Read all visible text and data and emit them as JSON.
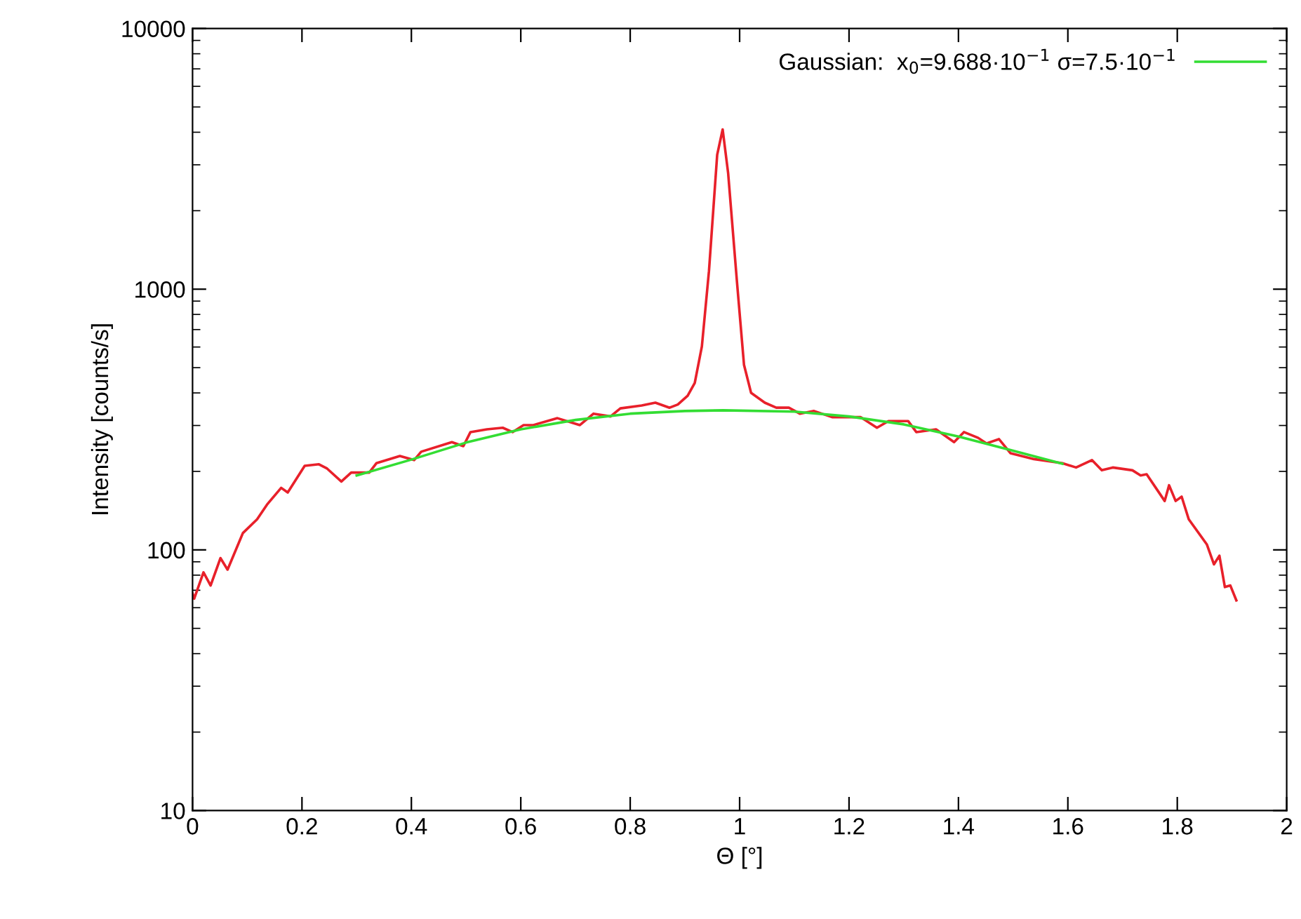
{
  "chart_data": {
    "type": "line",
    "xlabel": "Θ [°]",
    "ylabel": "Intensity [counts/s]",
    "log": "y",
    "xlim": [
      0,
      2
    ],
    "xticks": [
      0,
      0.2,
      0.4,
      0.6,
      0.8,
      1,
      1.2,
      1.4,
      1.6,
      1.8,
      2
    ],
    "ylim": [
      10,
      10000
    ],
    "yticks": [
      10,
      100,
      1000,
      10000
    ],
    "grid": false,
    "legend": "top right",
    "marker": "none",
    "line_style": "solid",
    "series": [
      {
        "color": "#e8202a",
        "x": [
          0.0,
          0.003,
          0.02,
          0.033,
          0.051,
          0.064,
          0.092,
          0.118,
          0.136,
          0.162,
          0.174,
          0.205,
          0.231,
          0.246,
          0.272,
          0.29,
          0.323,
          0.336,
          0.379,
          0.405,
          0.418,
          0.474,
          0.495,
          0.508,
          0.538,
          0.567,
          0.585,
          0.605,
          0.623,
          0.667,
          0.708,
          0.733,
          0.764,
          0.782,
          0.821,
          0.846,
          0.872,
          0.887,
          0.905,
          0.918,
          0.931,
          0.944,
          0.959,
          0.969,
          0.979,
          0.995,
          1.008,
          1.021,
          1.046,
          1.067,
          1.09,
          1.11,
          1.136,
          1.169,
          1.221,
          1.251,
          1.272,
          1.308,
          1.323,
          1.359,
          1.392,
          1.41,
          1.436,
          1.451,
          1.474,
          1.495,
          1.538,
          1.59,
          1.615,
          1.644,
          1.662,
          1.682,
          1.718,
          1.733,
          1.744,
          1.777,
          1.785,
          1.797,
          1.808,
          1.821,
          1.854,
          1.867,
          1.877,
          1.887,
          1.897,
          1.908
        ],
        "values": [
          68,
          65,
          82,
          73,
          93,
          84,
          116,
          131,
          149,
          173,
          166,
          210,
          213,
          205,
          183,
          198,
          198,
          215,
          229,
          221,
          238,
          259,
          250,
          283,
          290,
          294,
          283,
          301,
          301,
          320,
          301,
          333,
          325,
          349,
          358,
          367,
          351,
          361,
          390,
          437,
          603,
          1175,
          3280,
          4100,
          2790,
          1076,
          513,
          400,
          367,
          351,
          351,
          333,
          341,
          323,
          323,
          294,
          312,
          312,
          283,
          290,
          259,
          283,
          269,
          256,
          266,
          235,
          223,
          215,
          207,
          221,
          202,
          207,
          202,
          193,
          195,
          154,
          177,
          154,
          160,
          131,
          105,
          88,
          95,
          72,
          73,
          64
        ]
      },
      {
        "name": "Gaussian:  x$_{0}$=9.688·10$^{−1}$ σ=7.5·10$^{−1}$",
        "color": "#33dd33",
        "x": [
          0.3,
          0.4,
          0.5,
          0.6,
          0.7,
          0.8,
          0.9,
          0.97,
          1.1,
          1.2,
          1.3,
          1.4,
          1.5,
          1.59
        ],
        "values": [
          193,
          222,
          258,
          290,
          315,
          333,
          341,
          343,
          339,
          325,
          303,
          272,
          240,
          214
        ]
      }
    ]
  }
}
